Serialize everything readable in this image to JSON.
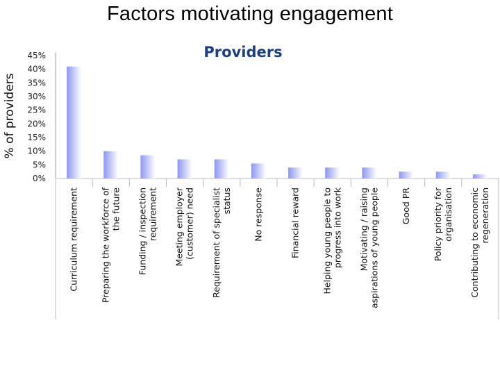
{
  "slide": {
    "title": "Factors motivating engagement"
  },
  "colors": {
    "bar_dark": "#8f96f2",
    "bar_light": "#ffffff",
    "title": "#1f3f7a",
    "axis": "#999999",
    "divider": "#bbbbbb"
  },
  "chart_data": {
    "type": "bar",
    "title": "Providers",
    "xlabel": "",
    "ylabel": "% of providers",
    "ylim": [
      0,
      45
    ],
    "yticks": [
      "0%",
      "5%",
      "10%",
      "15%",
      "20%",
      "25%",
      "30%",
      "35%",
      "40%",
      "45%"
    ],
    "grid": false,
    "categories": [
      "Curriculum requirement",
      "Preparing the workforce of the future",
      "Funding / inspection requirement",
      "Meeting employer (customer) need",
      "Requirement of specialist status",
      "No response",
      "Financial reward",
      "Helping young people to progress into work",
      "Motivating / raising aspirations of young people",
      "Good PR",
      "Policy priority for organisation",
      "Contributing to economic regeneration"
    ],
    "category_lines": [
      [
        "Curriculum requirement"
      ],
      [
        "Preparing the workforce of",
        "the future"
      ],
      [
        "Funding / inspection",
        "requirement"
      ],
      [
        "Meeting employer",
        "(customer) need"
      ],
      [
        "Requirement of specialist",
        "status"
      ],
      [
        "No response"
      ],
      [
        "Financial reward"
      ],
      [
        "Helping young people to",
        "progress into work"
      ],
      [
        "Motivating / raising",
        "aspirations of young people"
      ],
      [
        "Good PR"
      ],
      [
        "Policy priority for",
        "organisation"
      ],
      [
        "Contributing to economic",
        "regeneration"
      ]
    ],
    "values": [
      41,
      10,
      8.5,
      7,
      7,
      5.5,
      4,
      4,
      4,
      2.5,
      2.5,
      1.5
    ]
  }
}
